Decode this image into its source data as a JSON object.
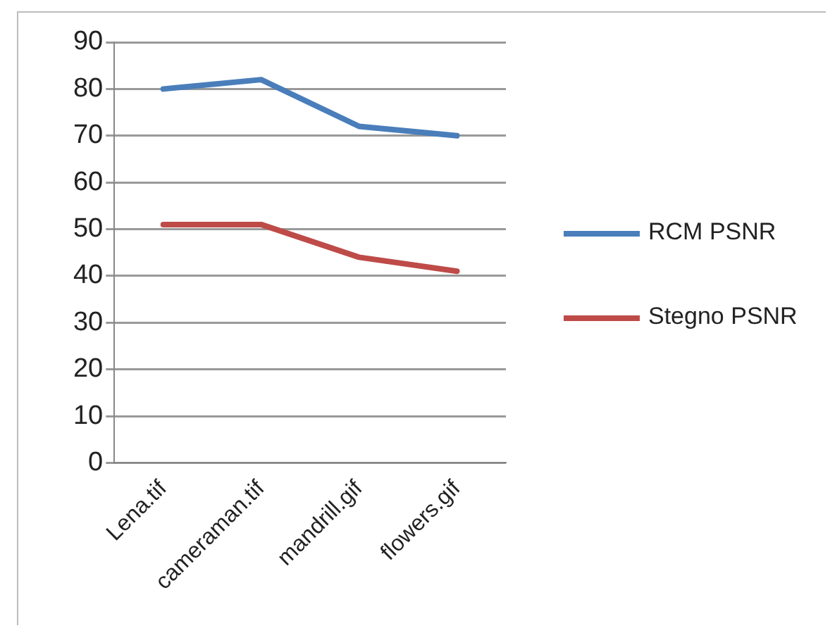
{
  "chart_data": {
    "type": "line",
    "categories": [
      "Lena.tif",
      "cameraman.tif",
      "mandrill.gif",
      "flowers.gif"
    ],
    "series": [
      {
        "name": "RCM PSNR",
        "color": "#4a7ebb",
        "values": [
          80,
          82,
          72,
          70
        ]
      },
      {
        "name": "Stegno PSNR",
        "color": "#be4b48",
        "values": [
          51,
          51,
          44,
          41
        ]
      }
    ],
    "ylim": [
      0,
      90
    ],
    "yticks": [
      0,
      10,
      20,
      30,
      40,
      50,
      60,
      70,
      80,
      90
    ],
    "grid": "y",
    "legend": "right",
    "marker": "none"
  }
}
